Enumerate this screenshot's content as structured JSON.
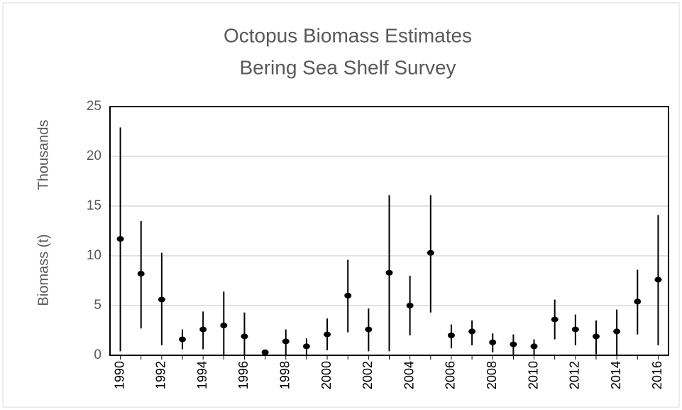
{
  "chart_data": {
    "type": "errorbar",
    "title": "Octopus Biomass Estimates",
    "subtitle": "Bering Sea Shelf Survey",
    "ylabel": "Biomass (t)",
    "yunit": "Thousands",
    "categories": [
      "1990",
      null,
      "1992",
      null,
      "1994",
      null,
      "1996",
      null,
      "1998",
      null,
      "2000",
      null,
      "2002",
      null,
      "2004",
      null,
      "2006",
      null,
      "2008",
      null,
      "2010",
      null,
      "2012",
      null,
      "2014",
      null,
      "2016"
    ],
    "series": [
      {
        "color": "#000000",
        "values": [
          11.7,
          8.2,
          5.6,
          1.6,
          2.6,
          3.0,
          1.9,
          0.3,
          1.4,
          0.9,
          2.1,
          6.0,
          2.6,
          8.3,
          5.0,
          10.3,
          2.0,
          2.4,
          1.3,
          1.1,
          0.9,
          3.6,
          2.6,
          1.9,
          2.4,
          5.4,
          7.6
        ],
        "low": [
          0.4,
          2.7,
          1.0,
          0.6,
          0.6,
          0,
          0,
          0.1,
          0,
          0,
          0.5,
          2.3,
          0.4,
          0.4,
          2.0,
          4.3,
          0.7,
          1.0,
          0.3,
          0,
          0,
          1.6,
          1.0,
          0.1,
          0,
          2.1,
          1.0
        ],
        "high": [
          22.9,
          13.5,
          10.3,
          2.6,
          4.4,
          6.4,
          4.3,
          0.4,
          2.6,
          1.7,
          3.7,
          9.6,
          4.7,
          16.1,
          8.0,
          16.1,
          3.1,
          3.5,
          2.2,
          2.1,
          1.6,
          5.6,
          4.1,
          3.5,
          4.6,
          8.6,
          14.1
        ]
      }
    ],
    "ylim": [
      0,
      25
    ],
    "yticks": [
      0,
      5,
      10,
      15,
      20,
      25
    ],
    "grid": true
  }
}
